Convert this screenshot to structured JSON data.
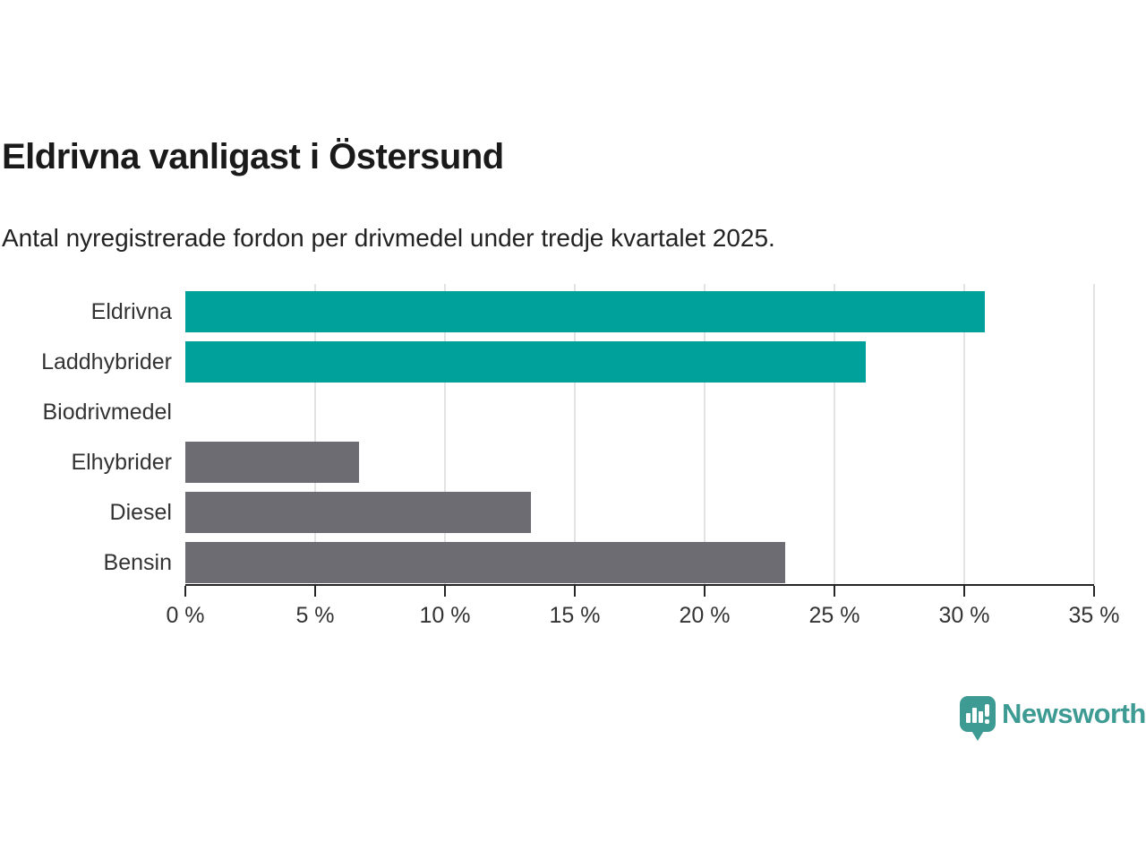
{
  "title": "Eldrivna vanligast i Östersund",
  "subtitle": "Antal nyregistrerade fordon per drivmedel under tredje kvartalet 2025.",
  "colors": {
    "teal": "#00a19a",
    "gray": "#6d6c72",
    "logo_teal": "#3d9b94",
    "title_text": "#1a1a1a",
    "axis_text": "#333333",
    "gridline": "#e3e3e3",
    "axis_line": "#262626"
  },
  "chart_data": {
    "type": "bar",
    "orientation": "horizontal",
    "title": "Eldrivna vanligast i Östersund",
    "subtitle": "Antal nyregistrerade fordon per drivmedel under tredje kvartalet 2025.",
    "categories": [
      "Eldrivna",
      "Laddhybrider",
      "Biodrivmedel",
      "Elhybrider",
      "Diesel",
      "Bensin"
    ],
    "values": [
      30.8,
      26.2,
      0,
      6.7,
      13.3,
      23.1
    ],
    "bar_colors": [
      "#00a19a",
      "#00a19a",
      "#6d6c72",
      "#6d6c72",
      "#6d6c72",
      "#6d6c72"
    ],
    "xlabel": "",
    "ylabel": "",
    "xlim": [
      0,
      35
    ],
    "x_ticks": [
      0,
      5,
      10,
      15,
      20,
      25,
      30,
      35
    ],
    "x_tick_labels": [
      "0 %",
      "5 %",
      "10 %",
      "15 %",
      "20 %",
      "25 %",
      "30 %",
      "35 %"
    ],
    "grid": "vertical",
    "legend": "none"
  },
  "branding": {
    "logo_text": "Newsworthy",
    "logo_icon": "newsworthy-chart-bubble-icon"
  }
}
